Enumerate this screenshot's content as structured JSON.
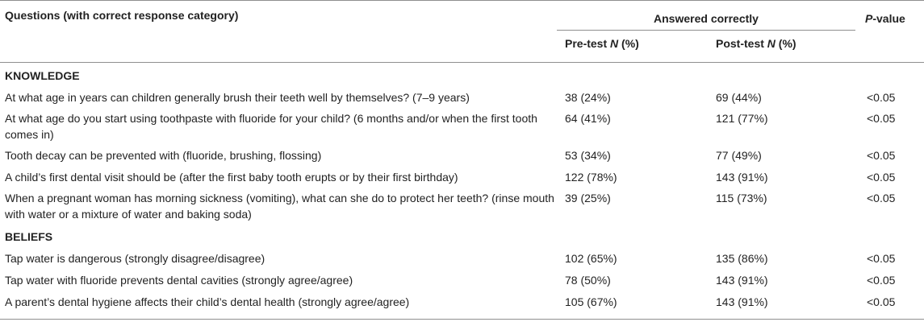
{
  "header": {
    "questions_label": "Questions (with correct response category)",
    "answered_correctly_label": "Answered correctly",
    "pretest_label_prefix": "Pre-test ",
    "pretest_label_n": "N",
    "pretest_label_suffix": " (%)",
    "posttest_label_prefix": "Post-test ",
    "posttest_label_n": "N",
    "posttest_label_suffix": " (%)",
    "pvalue_label_p": "P",
    "pvalue_label_suffix": "-value"
  },
  "sections": [
    {
      "title": "KNOWLEDGE",
      "rows": [
        {
          "question": "At what age in years can children generally brush their teeth well by themselves? (7–9 years)",
          "pre": "38 (24%)",
          "post": "69 (44%)",
          "p": "<0.05"
        },
        {
          "question": "At what age do you start using toothpaste with fluoride for your child? (6 months and/or when the first tooth comes in)",
          "pre": "64 (41%)",
          "post": "121 (77%)",
          "p": "<0.05"
        },
        {
          "question": "Tooth decay can be prevented with (fluoride, brushing, flossing)",
          "pre": "53 (34%)",
          "post": "77 (49%)",
          "p": "<0.05"
        },
        {
          "question": "A child’s first dental visit should be (after the first baby tooth erupts or by their first birthday)",
          "pre": "122 (78%)",
          "post": "143 (91%)",
          "p": "<0.05"
        },
        {
          "question": "When a pregnant woman has morning sickness (vomiting), what can she do to protect her teeth? (rinse mouth with water or a mixture of water and baking soda)",
          "pre": "39 (25%)",
          "post": "115 (73%)",
          "p": "<0.05"
        }
      ]
    },
    {
      "title": "BELIEFS",
      "rows": [
        {
          "question": "Tap water is dangerous (strongly disagree/disagree)",
          "pre": "102 (65%)",
          "post": "135 (86%)",
          "p": "<0.05"
        },
        {
          "question": "Tap water with fluoride prevents dental cavities (strongly agree/agree)",
          "pre": "78 (50%)",
          "post": "143 (91%)",
          "p": "<0.05"
        },
        {
          "question": "A parent’s dental hygiene affects their child’s dental health (strongly agree/agree)",
          "pre": "105 (67%)",
          "post": "143 (91%)",
          "p": "<0.05"
        }
      ]
    }
  ]
}
